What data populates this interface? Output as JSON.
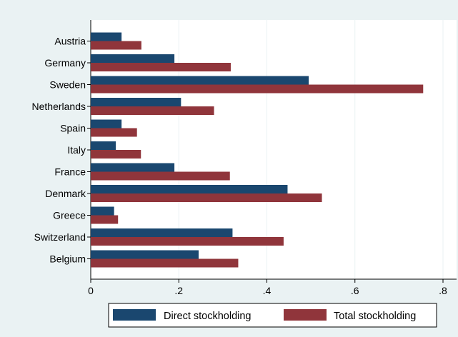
{
  "chart_data": {
    "type": "bar",
    "orientation": "horizontal",
    "categories": [
      "Austria",
      "Germany",
      "Sweden",
      "Netherlands",
      "Spain",
      "Italy",
      "France",
      "Denmark",
      "Greece",
      "Switzerland",
      "Belgium"
    ],
    "series": [
      {
        "name": "Direct stockholding",
        "color": "#1a476f",
        "values": [
          0.07,
          0.19,
          0.495,
          0.205,
          0.07,
          0.057,
          0.19,
          0.447,
          0.053,
          0.322,
          0.245
        ]
      },
      {
        "name": "Total stockholding",
        "color": "#90353b",
        "values": [
          0.115,
          0.318,
          0.755,
          0.28,
          0.105,
          0.114,
          0.316,
          0.525,
          0.062,
          0.438,
          0.335
        ]
      }
    ],
    "xlim": [
      0,
      0.8
    ],
    "xticks": [
      0,
      0.2,
      0.4,
      0.6,
      0.8
    ],
    "xtick_labels": [
      "0",
      ".2",
      ".4",
      ".6",
      ".8"
    ],
    "grid": true,
    "legend_position": "bottom",
    "title": "",
    "xlabel": "",
    "ylabel": ""
  }
}
